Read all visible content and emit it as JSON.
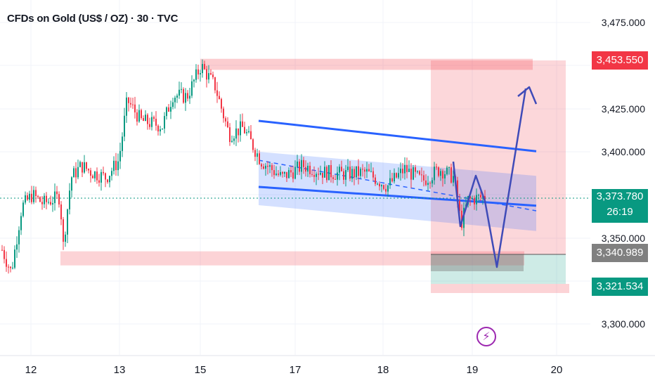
{
  "title": "CFDs on Gold (US$ / OZ) · 30 · TVC",
  "chart_data": {
    "type": "candlestick",
    "y_ticks": [
      "3,475.000",
      "3,425.000",
      "3,400.000",
      "3,350.000",
      "3,300.000"
    ],
    "y_ticks_values": [
      3475,
      3425,
      3400,
      3350,
      3300
    ],
    "x_ticks": [
      "12",
      "13",
      "15",
      "17",
      "18",
      "19",
      "20"
    ],
    "ylim": [
      3280,
      3484
    ],
    "current_price": {
      "value": "3,373.780",
      "countdown": "26:19"
    },
    "price_badges": [
      {
        "text": "3,453.550",
        "value": 3453.55,
        "color": "#f23645"
      },
      {
        "text": "3,340.989",
        "value": 3340.989,
        "color": "#808080"
      },
      {
        "text": "3,321.534",
        "value": 3321.534,
        "color": "#089981"
      }
    ],
    "zones": [
      {
        "kind": "resistance",
        "value_top": 3454,
        "value_bottom": 3448
      },
      {
        "kind": "support",
        "value_top": 3343,
        "value_bottom": 3334
      }
    ],
    "channel": {
      "upper": [
        3400,
        3386
      ],
      "lower": [
        3369,
        3354
      ],
      "mid": [
        3385,
        3370
      ]
    },
    "projection": [
      3386,
      3355,
      3380,
      3360,
      3374,
      3336,
      3348,
      3434
    ],
    "colors": {
      "up": "#089981",
      "down": "#f23645",
      "channel": "#2962ff",
      "projection": "#3f4bb8"
    }
  }
}
